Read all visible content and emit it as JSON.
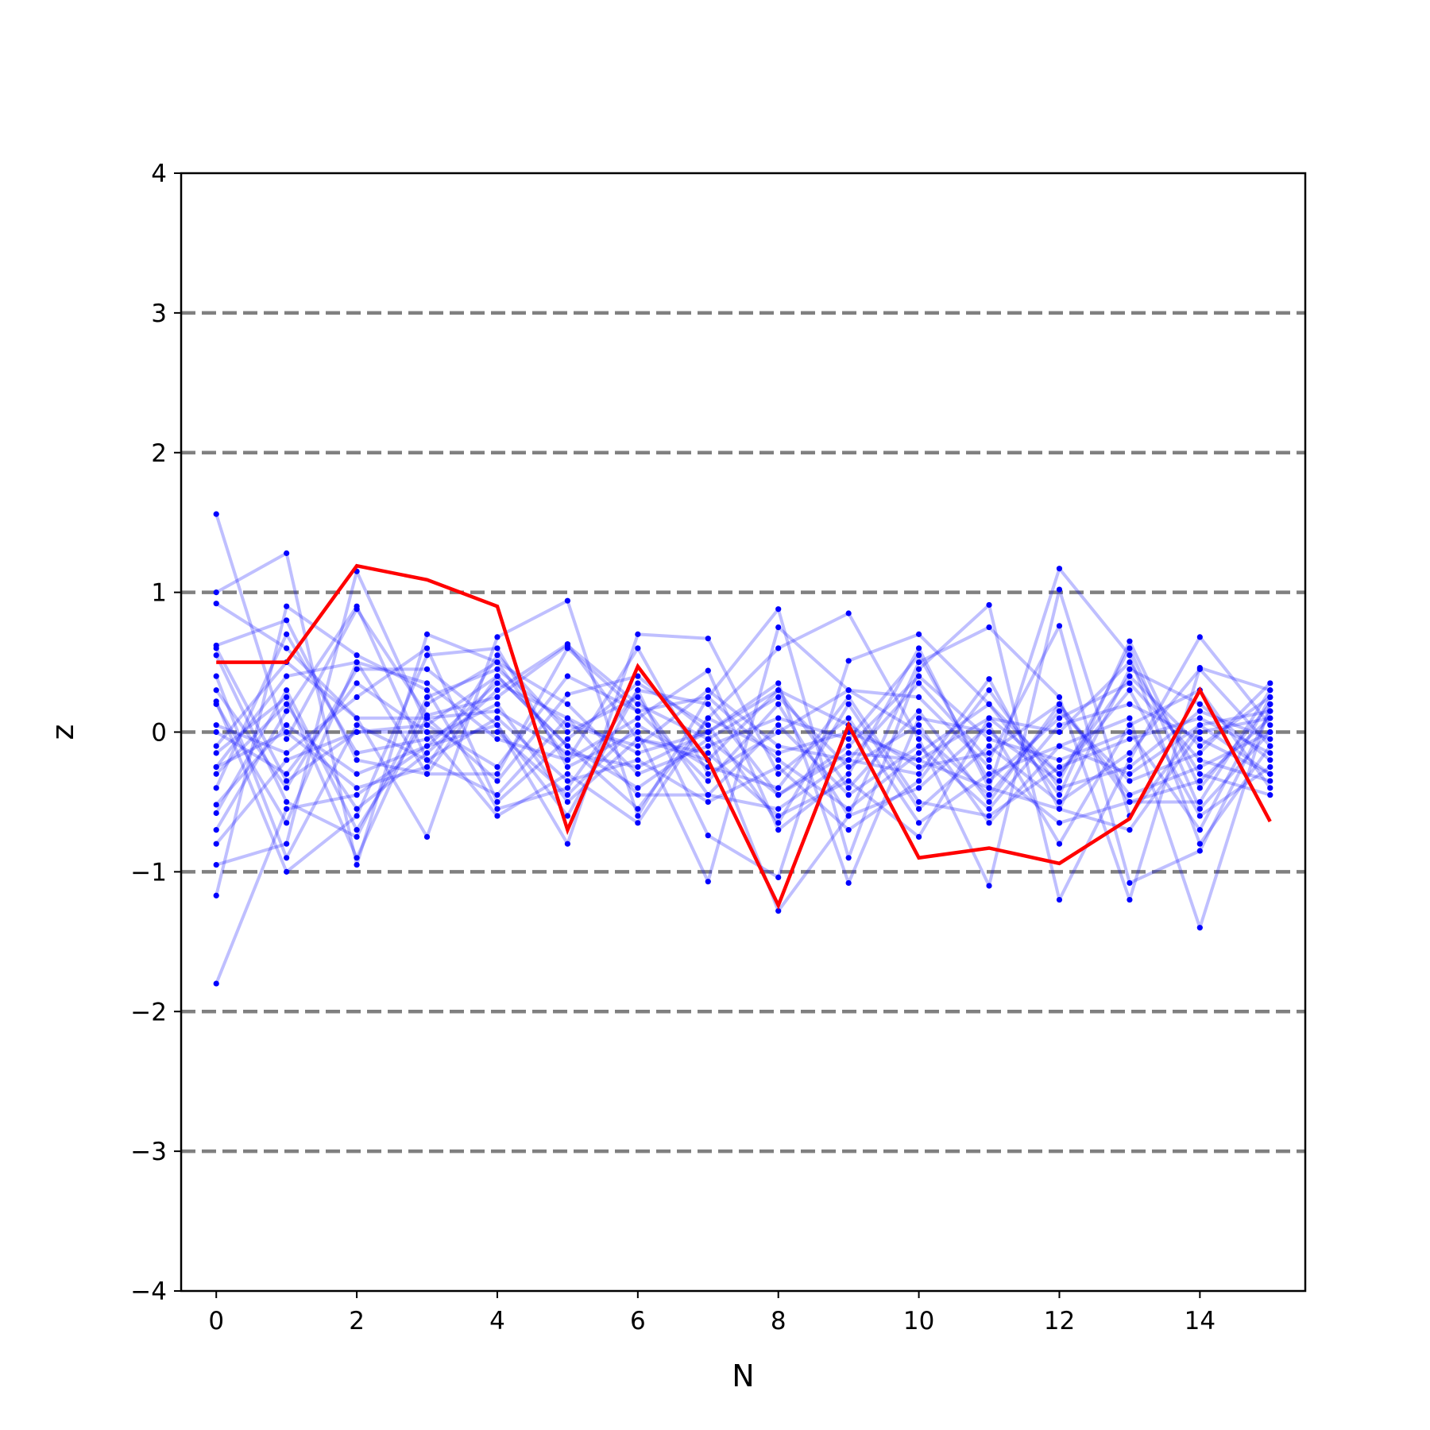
{
  "chart_data": {
    "type": "line",
    "xlabel": "N",
    "ylabel": "z",
    "xlim": [
      -0.5,
      15.5
    ],
    "ylim": [
      -4,
      4
    ],
    "xticks": [
      0,
      2,
      4,
      6,
      8,
      10,
      12,
      14
    ],
    "yticks": [
      -4,
      -3,
      -2,
      -1,
      0,
      1,
      2,
      3,
      4
    ],
    "xtick_labels": [
      "0",
      "2",
      "4",
      "6",
      "8",
      "10",
      "12",
      "14"
    ],
    "ytick_labels": [
      "−4",
      "−3",
      "−2",
      "−1",
      "0",
      "1",
      "2",
      "3",
      "4"
    ],
    "hlines": [
      -3,
      -2,
      -1,
      0,
      1,
      2,
      3
    ],
    "grid": false,
    "x": [
      0,
      1,
      2,
      3,
      4,
      5,
      6,
      7,
      8,
      9,
      10,
      11,
      12,
      13,
      14,
      15
    ],
    "background_series_color": "#0000ff",
    "highlight_color": "#ff0000",
    "hline_color": "#808080",
    "background_series": [
      [
        1.56,
        -0.05,
        0.88,
        0.12,
        0.25,
        0.62,
        0.2,
        -0.05,
        -0.45,
        -0.15,
        -0.2,
        0.1,
        -0.3,
        0.4,
        -0.1,
        0.25
      ],
      [
        -1.8,
        -0.55,
        -0.45,
        -0.1,
        0.35,
        0.1,
        -0.15,
        0.0,
        0.3,
        0.05,
        -0.25,
        -0.15,
        0.2,
        -0.5,
        -0.35,
        0.1
      ],
      [
        1.0,
        1.28,
        -0.95,
        0.7,
        0.5,
        -0.2,
        0.1,
        0.44,
        -0.7,
        -0.3,
        0.6,
        -0.4,
        1.17,
        0.55,
        -0.8,
        -0.1
      ],
      [
        0.92,
        0.6,
        0.1,
        -0.75,
        0.68,
        0.94,
        -0.6,
        0.25,
        0.88,
        -0.9,
        0.45,
        0.91,
        -1.2,
        -0.2,
        0.68,
        0.05
      ],
      [
        -1.17,
        0.9,
        0.55,
        0.3,
        -0.55,
        -0.4,
        0.3,
        -0.74,
        -1.04,
        0.51,
        0.7,
        0.2,
        -0.45,
        0.65,
        -0.4,
        0.2
      ],
      [
        -0.95,
        -0.8,
        1.15,
        0.05,
        0.4,
        -0.1,
        -0.55,
        0.1,
        0.6,
        0.85,
        -0.05,
        -1.1,
        1.02,
        -0.6,
        0.05,
        -0.3
      ],
      [
        0.62,
        0.8,
        -0.2,
        -0.3,
        -0.3,
        0.6,
        0.15,
        -0.35,
        0.2,
        -0.6,
        0.5,
        0.75,
        0.25,
        -1.2,
        0.46,
        0.3
      ],
      [
        0.3,
        -0.4,
        0.45,
        0.45,
        0.05,
        -0.8,
        0.7,
        0.67,
        -0.3,
        0.1,
        -0.65,
        -0.3,
        -0.1,
        0.1,
        -1.4,
        0.2
      ],
      [
        -0.7,
        0.15,
        0.9,
        -0.2,
        -0.45,
        0.1,
        -0.45,
        -0.45,
        -0.55,
        -0.2,
        -0.3,
        0.38,
        -0.55,
        0.45,
        0.2,
        -0.2
      ],
      [
        0.22,
        -1.0,
        -0.6,
        0.55,
        0.6,
        -0.25,
        0.0,
        -1.07,
        0.75,
        0.3,
        0.0,
        -0.45,
        0.15,
        -0.35,
        -0.15,
        0.35
      ],
      [
        -0.1,
        0.5,
        0.1,
        0.1,
        -0.35,
        0.27,
        0.4,
        0.0,
        -1.28,
        -0.6,
        -0.4,
        0.05,
        -0.8,
        0.05,
        0.3,
        -0.4
      ],
      [
        -0.58,
        0.3,
        -0.7,
        0.1,
        0.15,
        -0.15,
        -0.25,
        0.0,
        0.35,
        -1.08,
        0.1,
        0.0,
        -0.35,
        0.6,
        -0.55,
        0.0
      ],
      [
        -0.8,
        -0.2,
        0.0,
        0.0,
        0.0,
        -0.45,
        0.05,
        -0.25,
        -0.4,
        0.25,
        -0.5,
        -0.6,
        -0.25,
        -0.05,
        0.1,
        -0.15
      ],
      [
        0.55,
        -0.5,
        -0.75,
        0.25,
        0.45,
        0.05,
        -0.1,
        0.3,
        -0.1,
        -0.2,
        0.35,
        -0.2,
        0.76,
        -1.08,
        -0.85,
        0.15
      ],
      [
        -0.25,
        0.0,
        -0.4,
        -0.25,
        0.55,
        0.0,
        0.25,
        -0.45,
        0.05,
        -0.45,
        -0.1,
        -0.55,
        0.05,
        0.2,
        -0.05,
        -0.3
      ],
      [
        0.0,
        -0.3,
        0.35,
        0.0,
        -0.6,
        -0.3,
        -0.65,
        0.1,
        -0.15,
        0.0,
        -0.2,
        -0.4,
        -0.55,
        -0.7,
        0.0,
        0.1
      ],
      [
        -0.3,
        0.2,
        -0.55,
        -0.15,
        0.3,
        0.63,
        -0.05,
        -0.15,
        -0.6,
        -0.35,
        -0.75,
        0.1,
        0.0,
        0.5,
        -0.3,
        -0.45
      ],
      [
        0.2,
        -0.65,
        0.5,
        0.35,
        -0.05,
        -0.2,
        0.6,
        -0.3,
        0.0,
        0.3,
        0.25,
        -0.25,
        -0.65,
        -0.5,
        -0.5,
        0.3
      ],
      [
        -0.52,
        0.05,
        -0.3,
        -0.1,
        0.05,
        -0.6,
        0.3,
        0.2,
        -0.45,
        -0.1,
        0.4,
        -0.05,
        -0.2,
        0.0,
        -0.7,
        0.25
      ],
      [
        0.4,
        -0.9,
        0.05,
        -0.2,
        0.1,
        -0.35,
        -0.2,
        -0.5,
        -0.25,
        -0.7,
        -0.35,
        0.3,
        -0.4,
        -0.25,
        0.15,
        -0.05
      ],
      [
        -0.15,
        0.25,
        -0.9,
        0.2,
        0.5,
        0.2,
        -0.3,
        -0.1,
        0.1,
        -0.05,
        0.55,
        -0.35,
        0.1,
        0.35,
        -0.2,
        -0.35
      ],
      [
        0.05,
        -0.15,
        0.25,
        0.6,
        -0.5,
        -0.05,
        0.35,
        0.05,
        -0.65,
        0.2,
        -0.55,
        -0.1,
        -0.5,
        -0.15,
        0.45,
        -0.1
      ],
      [
        -0.4,
        0.7,
        -0.15,
        -0.05,
        0.2,
        -0.5,
        -0.05,
        -0.2,
        0.3,
        -0.4,
        0.15,
        -0.5,
        0.2,
        -0.45,
        -0.25,
        0.0
      ],
      [
        0.6,
        -0.35,
        0.0,
        0.05,
        -0.25,
        0.4,
        0.15,
        0.25,
        -0.2,
        -0.55,
        -0.15,
        0.2,
        -0.3,
        0.3,
        -0.6,
        -0.25
      ],
      [
        -0.25,
        0.4,
        0.5,
        -0.3,
        0.4,
        -0.1,
        -0.4,
        -0.05,
        0.25,
        -0.25,
        0.05,
        -0.65,
        -0.1,
        -0.3,
        0.05,
        0.15
      ]
    ],
    "highlight_series": [
      0.5,
      0.5,
      1.19,
      1.09,
      0.9,
      -0.7,
      0.47,
      -0.2,
      -1.24,
      0.05,
      -0.9,
      -0.83,
      -0.94,
      -0.62,
      0.3,
      -0.64
    ]
  }
}
